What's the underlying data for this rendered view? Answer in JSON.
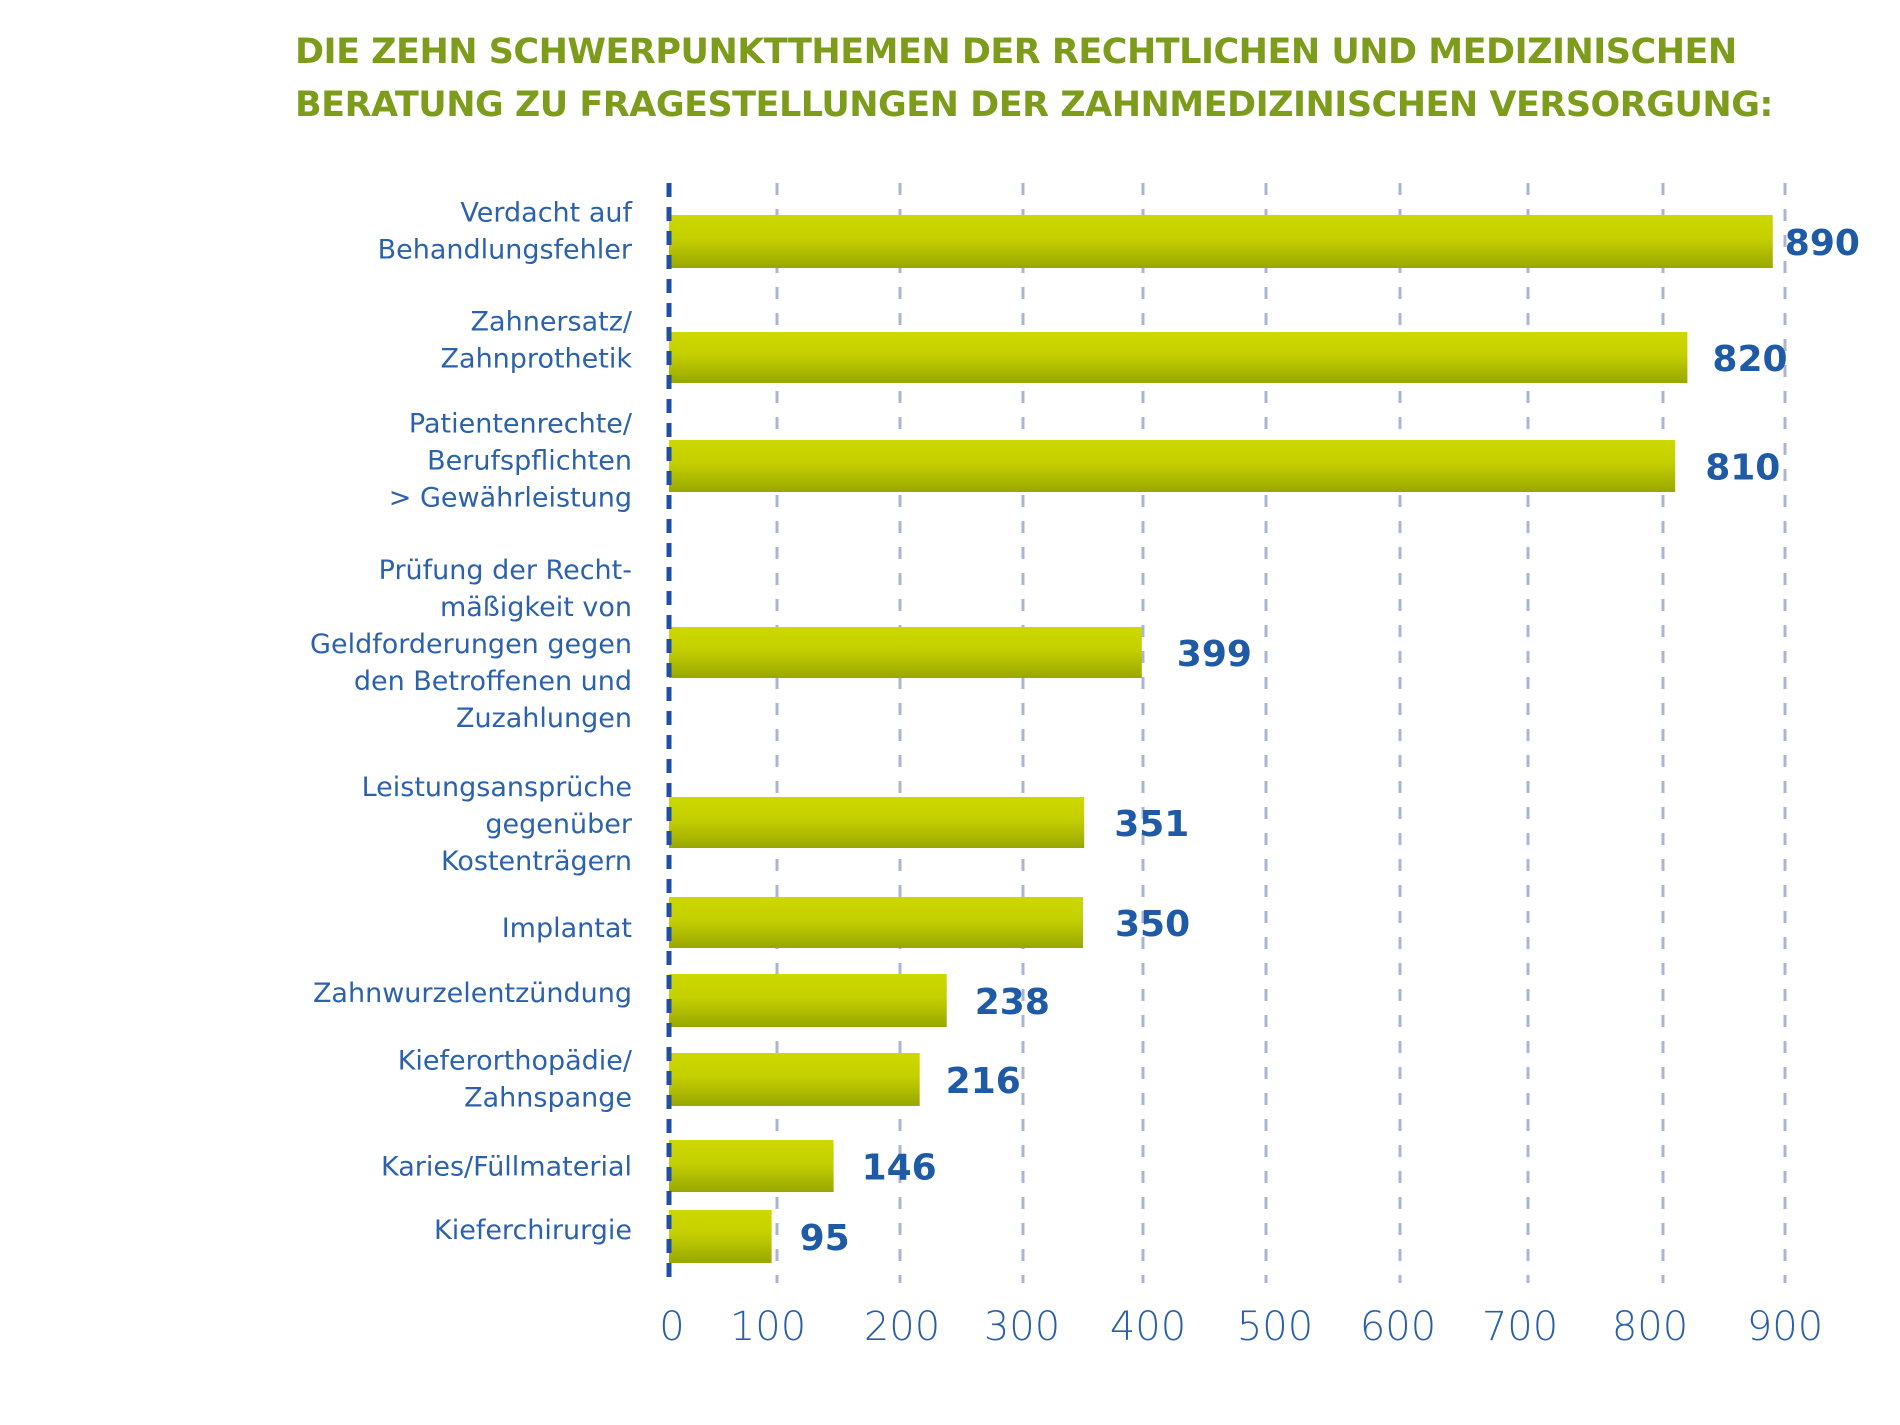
{
  "chart_data": {
    "type": "bar",
    "orientation": "horizontal",
    "title": "DIE ZEHN SCHWERPUNKTTHEMEN DER RECHTLICHEN UND MEDIZINISCHEN BERATUNG ZU FRAGESTELLUNGEN DER ZAHNMEDIZINISCHEN VERSORGUNG:",
    "title_lines": [
      "DIE ZEHN SCHWERPUNKTTHEMEN DER RECHTLICHEN UND MEDIZINISCHEN",
      "BERATUNG ZU FRAGESTELLUNGEN DER ZAHNMEDIZINISCHEN VERSORGUNG:"
    ],
    "categories": [
      [
        "Verdacht auf",
        "Behandlungsfehler"
      ],
      [
        "Zahnersatz/",
        "Zahnprothetik"
      ],
      [
        "Patientenrechte/",
        "Berufspflichten",
        "> Gewährleistung"
      ],
      [
        "Prüfung der Recht-",
        "mäßigkeit von",
        "Geldforderungen gegen",
        "den Betroffenen und",
        "Zuzahlungen"
      ],
      [
        "Leistungsansprüche",
        "gegenüber",
        "Kostenträgern"
      ],
      [
        "Implantat"
      ],
      [
        "Zahnwurzelentzündung"
      ],
      [
        "Kieferorthopädie/",
        "Zahnspange"
      ],
      [
        "Karies/Füllmaterial"
      ],
      [
        "Kieferchirurgie"
      ]
    ],
    "values": [
      890,
      820,
      810,
      399,
      351,
      350,
      238,
      216,
      146,
      95
    ],
    "value_labels": [
      "890",
      "820",
      "810",
      "399",
      "351",
      "350",
      "238",
      "216",
      "146",
      "95"
    ],
    "xlabel": "",
    "ylabel": "",
    "xlim": [
      0,
      900
    ],
    "x_ticks": [
      0,
      100,
      200,
      300,
      400,
      500,
      600,
      700,
      800,
      900
    ],
    "x_tick_labels": [
      "0",
      "100",
      "200",
      "300",
      "400",
      "500",
      "600",
      "700",
      "800",
      "900"
    ],
    "grid": true,
    "grid_style": "dashed-vertical",
    "legend": "none",
    "colors": {
      "title": "#7d9c1c",
      "bar_top": "#cdd800",
      "bar_bottom": "#98a700",
      "category_text": "#2c62ad",
      "value_text": "#1f5aa6",
      "axis": "#1e4fa0",
      "grid": "#a9b6d3"
    }
  }
}
